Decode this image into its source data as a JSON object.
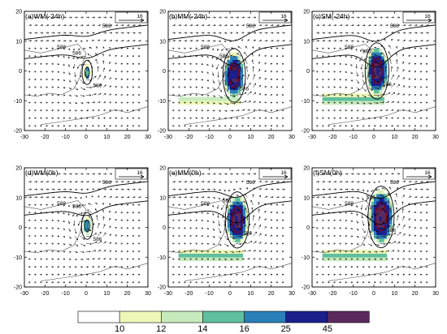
{
  "chart_data": {
    "type": "contour-vector-panels",
    "xlim": [
      -30,
      30
    ],
    "ylim": [
      -20,
      20
    ],
    "x_ticks": [
      -30,
      -20,
      -10,
      0,
      10,
      20,
      30
    ],
    "y_ticks": [
      -20,
      -10,
      0,
      10,
      20
    ],
    "reference_vector_label": "16",
    "contour_levels": [
      "584",
      "586",
      "588"
    ],
    "colorbar": {
      "colors": [
        "#ffffff",
        "#eef7b8",
        "#c8ebbd",
        "#5fbf9e",
        "#2a7fb8",
        "#1a1f8c",
        "#5a2a5e"
      ],
      "tick_labels": [
        "10",
        "12",
        "14",
        "16",
        "25",
        "45"
      ]
    },
    "panels": [
      {
        "title": "(a)WM(-24h)",
        "scale": 0.45,
        "cx": 0.5,
        "cy": -0.5,
        "tail": 0.2,
        "c584": false
      },
      {
        "title": "(b)MM(-24h)",
        "scale": 1.0,
        "cx": 2.0,
        "cy": -1.5,
        "tail": 0.8,
        "c584": true
      },
      {
        "title": "(c)SM(-24h)",
        "scale": 1.05,
        "cx": 1.5,
        "cy": 0.0,
        "tail": 1.0,
        "c584": true
      },
      {
        "title": "(d)WM(0h)",
        "scale": 0.5,
        "cx": 0.5,
        "cy": 0.5,
        "tail": 0.2,
        "c584": false
      },
      {
        "title": "(e)MM(0h)",
        "scale": 1.05,
        "cx": 3.5,
        "cy": 2.5,
        "tail": 1.0,
        "c584": true
      },
      {
        "title": "(f)SM(0h)",
        "scale": 1.15,
        "cx": 3.5,
        "cy": 3.5,
        "tail": 1.0,
        "c584": true
      }
    ]
  }
}
